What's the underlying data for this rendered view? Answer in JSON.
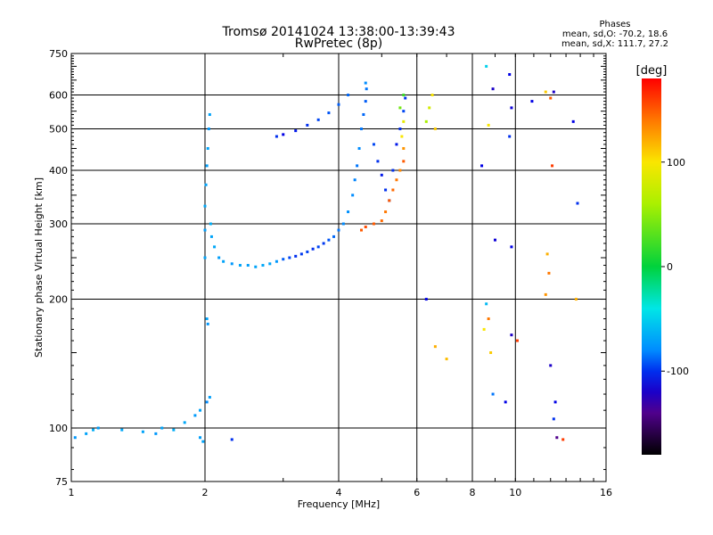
{
  "chart_data": {
    "type": "scatter",
    "title": "Tromsø 20141024 13:38:00-13:39:43",
    "subtitle": "RwPretec (8p)",
    "xlabel": "Frequency [MHz]",
    "ylabel": "Stationary phase Virtual Height [km]",
    "x_scale": "log",
    "y_scale": "log",
    "xlim": [
      1,
      16
    ],
    "ylim": [
      75,
      750
    ],
    "x_ticks": [
      1,
      2,
      4,
      6,
      8,
      10,
      16
    ],
    "y_ticks": [
      75,
      100,
      200,
      300,
      400,
      500,
      600,
      750
    ],
    "x_grid": [
      2,
      4,
      6,
      8,
      10
    ],
    "y_grid": [
      100,
      200,
      300,
      400,
      500,
      600
    ],
    "colorbar": {
      "label": "[deg]",
      "ticks": [
        100,
        0,
        -100
      ],
      "range": [
        -180,
        180
      ]
    },
    "phase_info": {
      "heading": "Phases",
      "line1": "mean, sd,O: -70.2, 18.6",
      "line2": "mean, sd,X: 111.7, 27.2"
    },
    "series": [
      {
        "values": [
          {
            "x": 1.02,
            "y": 95,
            "p": -75
          },
          {
            "x": 1.08,
            "y": 97,
            "p": -70
          },
          {
            "x": 1.12,
            "y": 99,
            "p": -65
          },
          {
            "x": 1.15,
            "y": 100,
            "p": -72
          },
          {
            "x": 1.3,
            "y": 99,
            "p": -68
          },
          {
            "x": 1.45,
            "y": 98,
            "p": -70
          },
          {
            "x": 1.55,
            "y": 97,
            "p": -75
          },
          {
            "x": 1.6,
            "y": 100,
            "p": -70
          },
          {
            "x": 1.7,
            "y": 99,
            "p": -66
          },
          {
            "x": 1.8,
            "y": 103,
            "p": -68
          },
          {
            "x": 1.9,
            "y": 107,
            "p": -74
          },
          {
            "x": 1.95,
            "y": 110,
            "p": -70
          },
          {
            "x": 2.02,
            "y": 115,
            "p": -80
          },
          {
            "x": 2.05,
            "y": 118,
            "p": -72
          },
          {
            "x": 2.02,
            "y": 180,
            "p": -70
          },
          {
            "x": 2.03,
            "y": 175,
            "p": -75
          },
          {
            "x": 1.95,
            "y": 95,
            "p": -72
          },
          {
            "x": 1.98,
            "y": 93,
            "p": -70
          },
          {
            "x": 2.3,
            "y": 94,
            "p": -100
          },
          {
            "x": 2.0,
            "y": 250,
            "p": -70
          },
          {
            "x": 2.0,
            "y": 290,
            "p": -72
          },
          {
            "x": 2.0,
            "y": 330,
            "p": -68
          },
          {
            "x": 2.01,
            "y": 370,
            "p": -70
          },
          {
            "x": 2.02,
            "y": 410,
            "p": -72
          },
          {
            "x": 2.03,
            "y": 450,
            "p": -70
          },
          {
            "x": 2.04,
            "y": 500,
            "p": -75
          },
          {
            "x": 2.05,
            "y": 540,
            "p": -70
          },
          {
            "x": 2.06,
            "y": 300,
            "p": -65
          },
          {
            "x": 2.07,
            "y": 280,
            "p": -70
          },
          {
            "x": 2.1,
            "y": 265,
            "p": -68
          },
          {
            "x": 2.15,
            "y": 250,
            "p": -72
          },
          {
            "x": 2.2,
            "y": 245,
            "p": -70
          },
          {
            "x": 2.3,
            "y": 242,
            "p": -75
          },
          {
            "x": 2.4,
            "y": 240,
            "p": -70
          },
          {
            "x": 2.5,
            "y": 240,
            "p": -72
          },
          {
            "x": 2.6,
            "y": 238,
            "p": -70
          },
          {
            "x": 2.7,
            "y": 240,
            "p": -68
          },
          {
            "x": 2.8,
            "y": 242,
            "p": -70
          },
          {
            "x": 2.9,
            "y": 245,
            "p": -75
          },
          {
            "x": 3.0,
            "y": 248,
            "p": -90
          },
          {
            "x": 3.1,
            "y": 250,
            "p": -95
          },
          {
            "x": 3.2,
            "y": 252,
            "p": -100
          },
          {
            "x": 3.3,
            "y": 255,
            "p": -98
          },
          {
            "x": 3.4,
            "y": 258,
            "p": -96
          },
          {
            "x": 3.5,
            "y": 262,
            "p": -100
          },
          {
            "x": 3.6,
            "y": 265,
            "p": -95
          },
          {
            "x": 3.7,
            "y": 270,
            "p": -98
          },
          {
            "x": 3.8,
            "y": 275,
            "p": -92
          },
          {
            "x": 3.9,
            "y": 280,
            "p": -88
          },
          {
            "x": 4.0,
            "y": 290,
            "p": -85
          },
          {
            "x": 4.1,
            "y": 300,
            "p": -80
          },
          {
            "x": 4.2,
            "y": 320,
            "p": -78
          },
          {
            "x": 4.3,
            "y": 350,
            "p": -80
          },
          {
            "x": 4.35,
            "y": 380,
            "p": -82
          },
          {
            "x": 4.4,
            "y": 410,
            "p": -85
          },
          {
            "x": 4.45,
            "y": 450,
            "p": -80
          },
          {
            "x": 4.5,
            "y": 500,
            "p": -85
          },
          {
            "x": 4.55,
            "y": 540,
            "p": -88
          },
          {
            "x": 4.6,
            "y": 580,
            "p": -90
          },
          {
            "x": 4.62,
            "y": 620,
            "p": -85
          },
          {
            "x": 4.6,
            "y": 640,
            "p": -80
          },
          {
            "x": 2.9,
            "y": 480,
            "p": -100
          },
          {
            "x": 3.0,
            "y": 485,
            "p": -110
          },
          {
            "x": 3.2,
            "y": 495,
            "p": -105
          },
          {
            "x": 3.4,
            "y": 510,
            "p": -100
          },
          {
            "x": 3.6,
            "y": 525,
            "p": -95
          },
          {
            "x": 3.8,
            "y": 545,
            "p": -92
          },
          {
            "x": 4.0,
            "y": 570,
            "p": -90
          },
          {
            "x": 4.2,
            "y": 600,
            "p": -88
          },
          {
            "x": 4.8,
            "y": 460,
            "p": -95
          },
          {
            "x": 4.9,
            "y": 420,
            "p": -100
          },
          {
            "x": 5.0,
            "y": 390,
            "p": -105
          },
          {
            "x": 5.1,
            "y": 360,
            "p": -100
          },
          {
            "x": 5.2,
            "y": 340,
            "p": -95
          },
          {
            "x": 5.3,
            "y": 400,
            "p": -100
          },
          {
            "x": 5.4,
            "y": 460,
            "p": -105
          },
          {
            "x": 5.5,
            "y": 500,
            "p": -100
          },
          {
            "x": 5.6,
            "y": 550,
            "p": -95
          },
          {
            "x": 5.65,
            "y": 590,
            "p": -100
          },
          {
            "x": 4.5,
            "y": 290,
            "p": 150
          },
          {
            "x": 4.6,
            "y": 295,
            "p": 155
          },
          {
            "x": 4.8,
            "y": 300,
            "p": 150
          },
          {
            "x": 5.0,
            "y": 305,
            "p": 145
          },
          {
            "x": 5.1,
            "y": 320,
            "p": 140
          },
          {
            "x": 5.2,
            "y": 340,
            "p": 150
          },
          {
            "x": 5.3,
            "y": 360,
            "p": 145
          },
          {
            "x": 5.4,
            "y": 380,
            "p": 140
          },
          {
            "x": 5.5,
            "y": 400,
            "p": 135
          },
          {
            "x": 5.6,
            "y": 420,
            "p": 150
          },
          {
            "x": 5.6,
            "y": 450,
            "p": 130
          },
          {
            "x": 5.55,
            "y": 480,
            "p": 100
          },
          {
            "x": 5.6,
            "y": 520,
            "p": 90
          },
          {
            "x": 5.5,
            "y": 560,
            "p": 40
          },
          {
            "x": 5.6,
            "y": 600,
            "p": 20
          },
          {
            "x": 6.3,
            "y": 520,
            "p": 60
          },
          {
            "x": 6.4,
            "y": 560,
            "p": 80
          },
          {
            "x": 6.5,
            "y": 600,
            "p": 100
          },
          {
            "x": 6.6,
            "y": 500,
            "p": 110
          },
          {
            "x": 6.3,
            "y": 200,
            "p": -110
          },
          {
            "x": 6.6,
            "y": 155,
            "p": 120
          },
          {
            "x": 7.0,
            "y": 145,
            "p": 115
          },
          {
            "x": 8.5,
            "y": 170,
            "p": 100
          },
          {
            "x": 8.6,
            "y": 195,
            "p": -60
          },
          {
            "x": 8.7,
            "y": 180,
            "p": 140
          },
          {
            "x": 8.8,
            "y": 150,
            "p": 110
          },
          {
            "x": 8.9,
            "y": 120,
            "p": -85
          },
          {
            "x": 9.5,
            "y": 115,
            "p": -110
          },
          {
            "x": 9.8,
            "y": 165,
            "p": -120
          },
          {
            "x": 10.1,
            "y": 160,
            "p": 160
          },
          {
            "x": 8.4,
            "y": 410,
            "p": -110
          },
          {
            "x": 8.7,
            "y": 510,
            "p": 100
          },
          {
            "x": 9.7,
            "y": 480,
            "p": -100
          },
          {
            "x": 9.8,
            "y": 560,
            "p": -115
          },
          {
            "x": 8.6,
            "y": 700,
            "p": -50
          },
          {
            "x": 8.9,
            "y": 620,
            "p": -120
          },
          {
            "x": 9.7,
            "y": 670,
            "p": -110
          },
          {
            "x": 10.9,
            "y": 580,
            "p": -110
          },
          {
            "x": 11.7,
            "y": 610,
            "p": 110
          },
          {
            "x": 12.0,
            "y": 590,
            "p": 150
          },
          {
            "x": 12.2,
            "y": 610,
            "p": -120
          },
          {
            "x": 9.0,
            "y": 275,
            "p": -115
          },
          {
            "x": 9.8,
            "y": 265,
            "p": -110
          },
          {
            "x": 11.8,
            "y": 255,
            "p": 120
          },
          {
            "x": 11.9,
            "y": 230,
            "p": 140
          },
          {
            "x": 11.7,
            "y": 205,
            "p": 130
          },
          {
            "x": 12.1,
            "y": 410,
            "p": 160
          },
          {
            "x": 13.5,
            "y": 520,
            "p": -110
          },
          {
            "x": 13.8,
            "y": 335,
            "p": -100
          },
          {
            "x": 13.7,
            "y": 200,
            "p": 120
          },
          {
            "x": 12.0,
            "y": 140,
            "p": -120
          },
          {
            "x": 12.3,
            "y": 115,
            "p": -110
          },
          {
            "x": 12.2,
            "y": 105,
            "p": -100
          },
          {
            "x": 12.4,
            "y": 95,
            "p": -140
          },
          {
            "x": 12.8,
            "y": 94,
            "p": 160
          }
        ]
      }
    ]
  }
}
